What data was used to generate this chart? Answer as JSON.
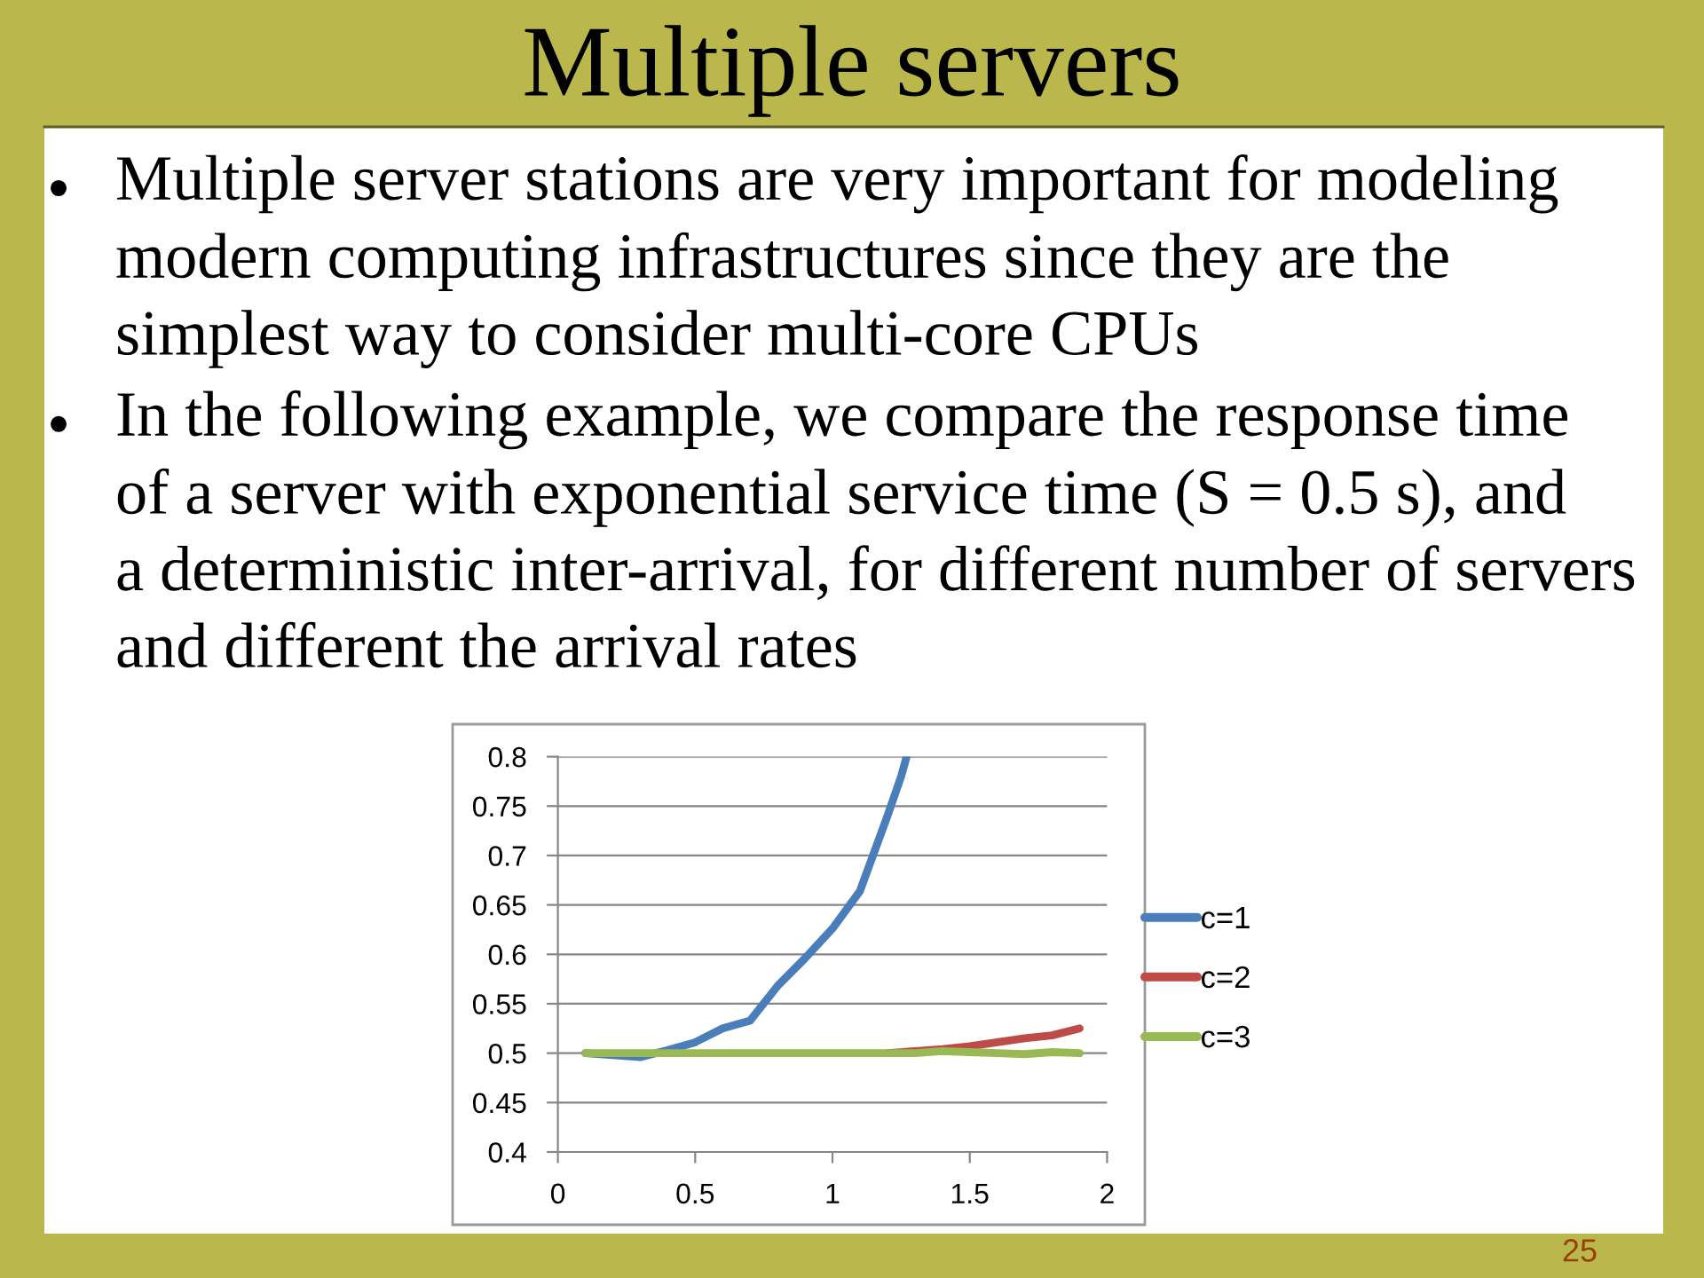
{
  "chart_data": {
    "type": "line",
    "title": "Multiple servers",
    "annotations": [
      "Multiple server stations are very important for modeling\nmodern computing infrastructures since they are the\nsimplest way to consider multi-core CPUs",
      "In the following example, we compare the response time\nof a server with exponential service time (S = 0.5 s), and\na deterministic inter-arrival, for different number of servers\nand different the arrival rates",
      "25"
    ],
    "series": [
      {
        "name": "c=1",
        "color": "#4a7ebb",
        "x": [
          0.1,
          0.2,
          0.3,
          0.4,
          0.5,
          0.6,
          0.7,
          0.8,
          0.9,
          1.0,
          1.1,
          1.2,
          1.25,
          1.27
        ],
        "values": [
          0.5,
          0.498,
          0.496,
          0.503,
          0.511,
          0.525,
          0.533,
          0.568,
          0.596,
          0.626,
          0.664,
          0.74,
          0.78,
          0.8
        ]
      },
      {
        "name": "c=2",
        "color": "#be4b48",
        "x": [
          1.2,
          1.3,
          1.4,
          1.5,
          1.6,
          1.7,
          1.8,
          1.9
        ],
        "values": [
          0.5,
          0.502,
          0.504,
          0.507,
          0.511,
          0.515,
          0.518,
          0.525
        ]
      },
      {
        "name": "c=3",
        "color": "#98b954",
        "x": [
          0.1,
          0.2,
          0.3,
          0.4,
          0.5,
          0.6,
          0.7,
          0.8,
          0.9,
          1.0,
          1.1,
          1.2,
          1.3,
          1.4,
          1.5,
          1.6,
          1.7,
          1.8,
          1.9
        ],
        "values": [
          0.5,
          0.5,
          0.5,
          0.5,
          0.5,
          0.5,
          0.5,
          0.5,
          0.5,
          0.5,
          0.5,
          0.5,
          0.5,
          0.502,
          0.501,
          0.5,
          0.499,
          0.501,
          0.5
        ]
      }
    ],
    "xlim": [
      0,
      2
    ],
    "xticks": [
      0,
      0.5,
      1,
      1.5,
      2
    ],
    "ylim": [
      0.4,
      0.8
    ],
    "yticks": [
      0.4,
      0.45,
      0.5,
      0.55,
      0.6,
      0.65,
      0.7,
      0.75,
      0.8
    ],
    "grid": "y",
    "legend": "right"
  }
}
